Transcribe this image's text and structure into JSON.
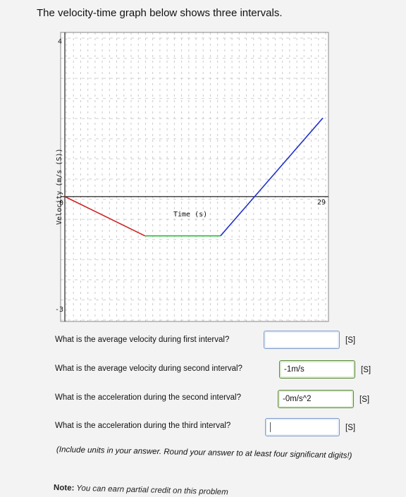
{
  "header": {
    "title": "The velocity-time graph below shows three intervals."
  },
  "chart_data": {
    "type": "line",
    "xlabel": "Time (s)",
    "ylabel": "Velocity (m/s (S))",
    "ylim": [
      -3,
      4
    ],
    "xlim": [
      0,
      29
    ],
    "y_top_label": "4",
    "y_bottom_label": "-3",
    "x_right_label": "29",
    "origin_label": "0",
    "grid": true,
    "series": [
      {
        "color": "#cc2222",
        "points": [
          [
            0,
            0
          ],
          [
            9,
            -1
          ]
        ]
      },
      {
        "color": "#22bb33",
        "points": [
          [
            9,
            -1
          ],
          [
            17.5,
            -1
          ]
        ]
      },
      {
        "color": "#2233cc",
        "points": [
          [
            17.5,
            -1
          ],
          [
            29,
            2
          ]
        ]
      }
    ]
  },
  "questions": [
    {
      "label": "What is the average velocity during first interval?",
      "value": "",
      "unit": "[S]"
    },
    {
      "label": "What is the average velocity during second interval?",
      "value": "-1m/s",
      "unit": "[S]"
    },
    {
      "label": "What is the acceleration during the second interval?",
      "value": "-0m/s^2",
      "unit": "[S]"
    },
    {
      "label": "What is the acceleration during the third interval?",
      "value": "",
      "unit": "[S]"
    }
  ],
  "instructions": "(Include units in your answer. Round your answer to at least four significant digits!)",
  "note": {
    "bold": "Note:",
    "text": " You can earn partial credit on this problem"
  }
}
